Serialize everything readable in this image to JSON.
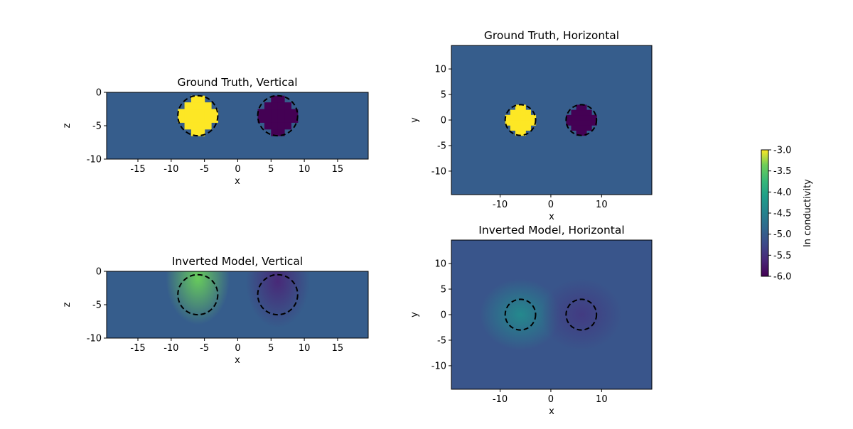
{
  "chart_data": [
    {
      "type": "heatmap",
      "title": "Ground Truth, Vertical",
      "xlabel": "x",
      "ylabel": "z",
      "xlim": [
        -19.7,
        19.6
      ],
      "ylim": [
        -10,
        0
      ],
      "xticks": [
        -15,
        -10,
        -5,
        0,
        5,
        10,
        15
      ],
      "yticks": [
        -10,
        -5,
        0
      ],
      "background": -5.0,
      "bodies": [
        {
          "x": -6,
          "z": -3.5,
          "value": -3.0
        },
        {
          "x": 6,
          "z": -3.5,
          "value": -6.0
        }
      ],
      "circles": [
        {
          "x": -6,
          "y": -3.5,
          "r": 3
        },
        {
          "x": 6,
          "y": -3.5,
          "r": 3
        }
      ]
    },
    {
      "type": "heatmap",
      "title": "Ground Truth, Horizontal",
      "xlabel": "x",
      "ylabel": "y",
      "xlim": [
        -19.6,
        19.9
      ],
      "ylim": [
        -14.6,
        14.6
      ],
      "xticks": [
        -10,
        0,
        10
      ],
      "yticks": [
        -10,
        -5,
        0,
        5,
        10
      ],
      "background": -5.0,
      "bodies": [
        {
          "x": -6,
          "y": 0,
          "value": -3.0
        },
        {
          "x": 6,
          "y": 0,
          "value": -6.0
        }
      ],
      "circles": [
        {
          "x": -6,
          "y": 0,
          "r": 3
        },
        {
          "x": 6,
          "y": 0,
          "r": 3
        }
      ]
    },
    {
      "type": "heatmap",
      "title": "Inverted Model, Vertical",
      "xlabel": "x",
      "ylabel": "z",
      "xlim": [
        -19.7,
        19.6
      ],
      "ylim": [
        -10,
        0
      ],
      "xticks": [
        -15,
        -10,
        -5,
        0,
        5,
        10,
        15
      ],
      "yticks": [
        -10,
        -5,
        0
      ],
      "background": -5.0,
      "bodies": [
        {
          "x": -6,
          "z": -1,
          "value": -3.4
        },
        {
          "x": 6,
          "z": -1.5,
          "value": -5.6
        }
      ],
      "circles": [
        {
          "x": -6,
          "y": -3.5,
          "r": 3
        },
        {
          "x": 6,
          "y": -3.5,
          "r": 3
        }
      ]
    },
    {
      "type": "heatmap",
      "title": "Inverted Model, Horizontal",
      "xlabel": "x",
      "ylabel": "y",
      "xlim": [
        -19.6,
        19.9
      ],
      "ylim": [
        -14.6,
        14.6
      ],
      "xticks": [
        -10,
        0,
        10
      ],
      "yticks": [
        -10,
        -5,
        0,
        5,
        10
      ],
      "background": -5.1,
      "bodies": [
        {
          "x": -6,
          "y": 0,
          "value": -4.4
        },
        {
          "x": 6,
          "y": 0,
          "value": -5.4
        }
      ],
      "circles": [
        {
          "x": -6,
          "y": 0,
          "r": 3
        },
        {
          "x": 6,
          "y": 0,
          "r": 3
        }
      ]
    }
  ],
  "colorbar": {
    "label": "ln conductivity",
    "colormap": "viridis",
    "range": [
      -6.0,
      -3.0
    ],
    "ticks": [
      "-6.0",
      "-5.5",
      "-5.0",
      "-4.5",
      "-4.0",
      "-3.5",
      "-3.0"
    ]
  }
}
